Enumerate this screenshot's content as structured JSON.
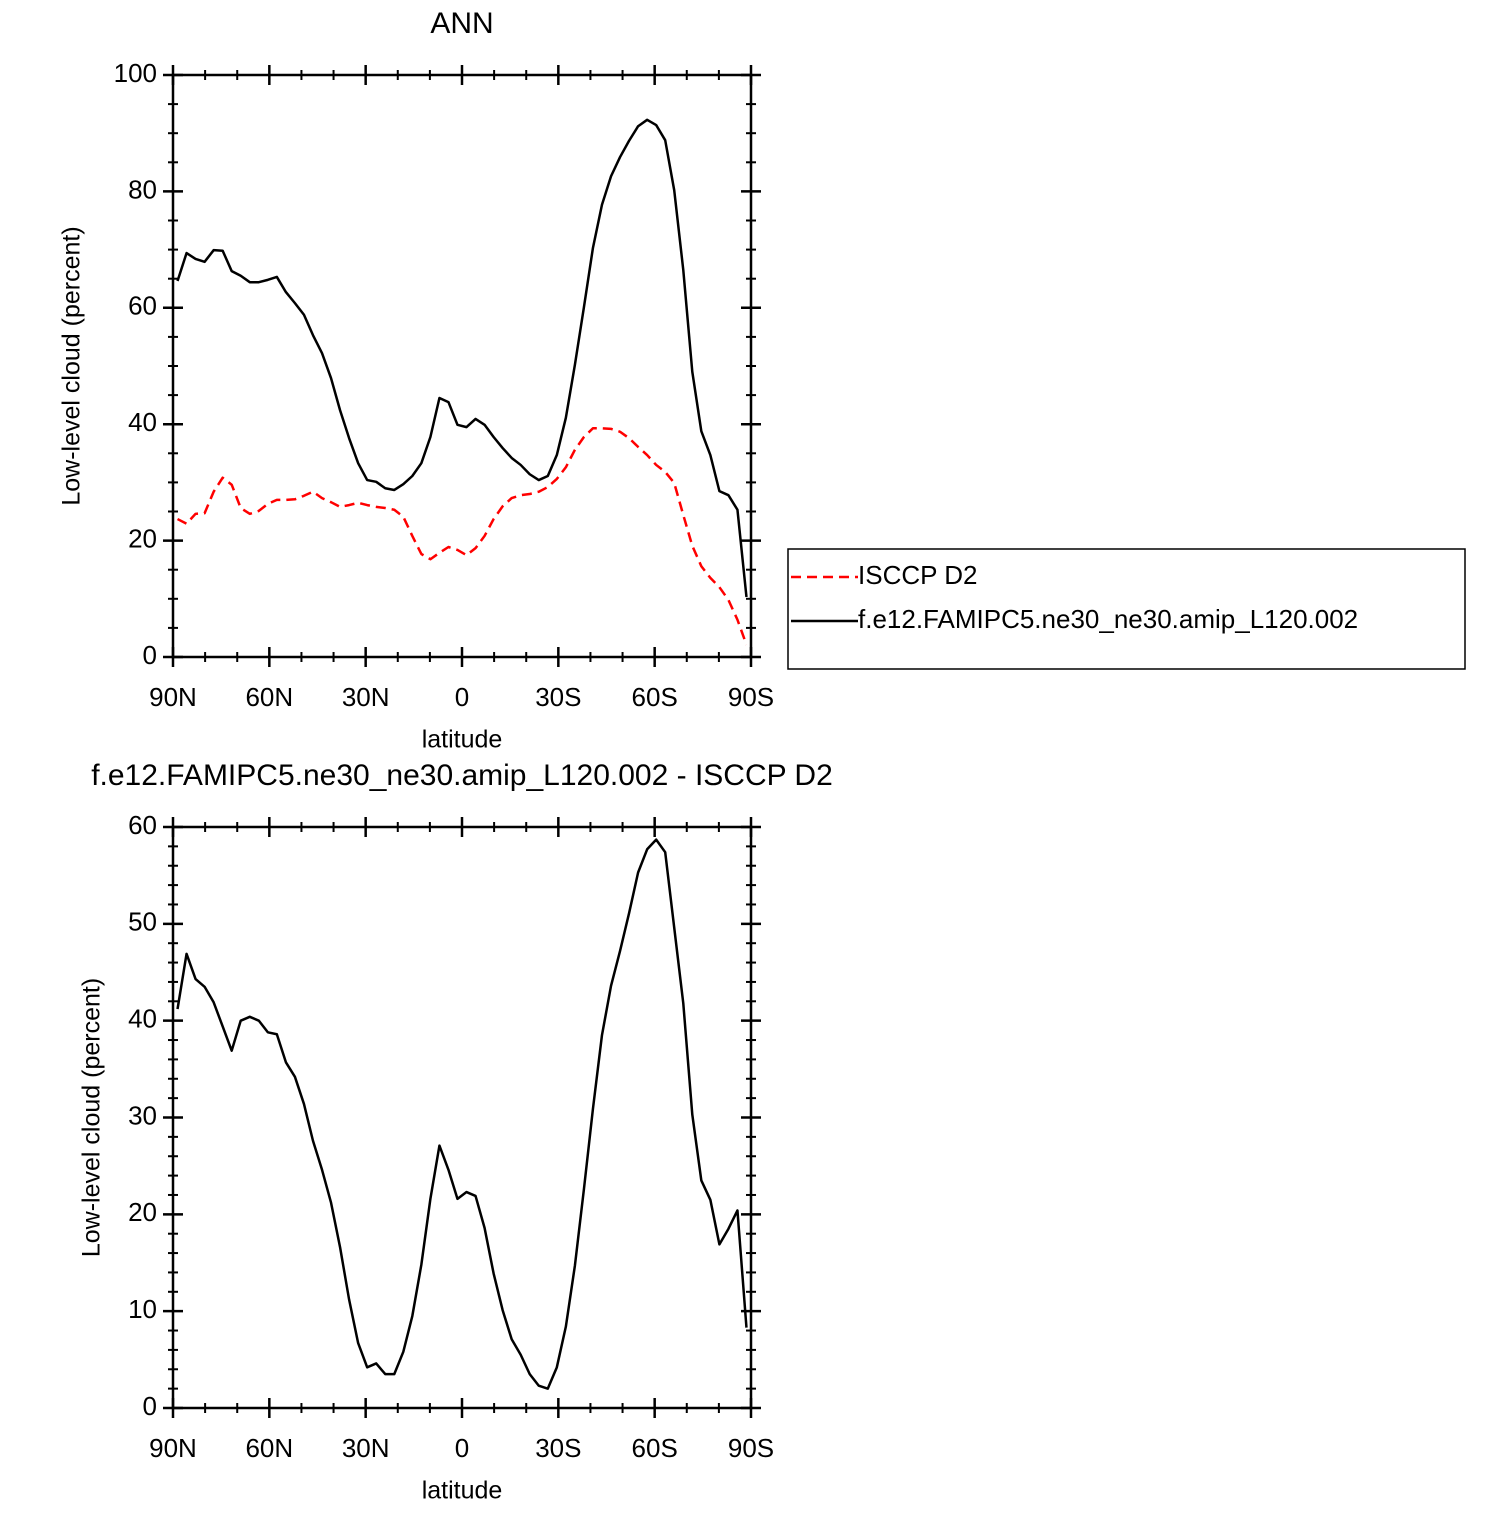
{
  "chart_data": [
    {
      "type": "line",
      "title": "ANN",
      "xlabel": "latitude",
      "ylabel": "Low-level cloud (percent)",
      "x": [
        88.59,
        85.78,
        82.97,
        80.16,
        77.34,
        74.53,
        71.72,
        68.91,
        66.09,
        63.28,
        60.47,
        57.66,
        54.84,
        52.03,
        49.22,
        46.41,
        43.59,
        40.78,
        37.97,
        35.16,
        32.34,
        29.53,
        26.72,
        23.91,
        21.09,
        18.28,
        15.47,
        12.66,
        9.84,
        7.03,
        4.22,
        1.41,
        -1.41,
        -4.22,
        -7.03,
        -9.84,
        -12.66,
        -15.47,
        -18.28,
        -21.09,
        -23.91,
        -26.72,
        -29.53,
        -32.34,
        -35.16,
        -37.97,
        -40.78,
        -43.59,
        -46.41,
        -49.22,
        -52.03,
        -54.84,
        -57.66,
        -60.47,
        -63.28,
        -66.09,
        -68.91,
        -71.72,
        -74.53,
        -77.34,
        -80.16,
        -82.97,
        -85.78,
        -88.59
      ],
      "series": [
        {
          "name": "ISCCP D2",
          "color": "#ff0000",
          "line_style": "dashed",
          "values": [
            23.7,
            22.9,
            24.6,
            24.7,
            28.4,
            30.8,
            29.6,
            25.6,
            24.6,
            25.1,
            26.3,
            27.0,
            27.0,
            27.1,
            27.7,
            28.4,
            27.3,
            26.6,
            25.8,
            26.1,
            26.5,
            26.1,
            25.8,
            25.6,
            25.3,
            24.1,
            20.8,
            17.7,
            16.8,
            17.9,
            18.9,
            18.4,
            17.5,
            18.7,
            20.8,
            23.7,
            25.9,
            27.3,
            27.8,
            28.0,
            28.4,
            29.2,
            30.6,
            32.6,
            35.6,
            37.8,
            39.3,
            39.3,
            39.2,
            38.7,
            37.6,
            36.1,
            34.7,
            33.0,
            31.8,
            29.9,
            24.4,
            19.1,
            15.6,
            13.6,
            12.0,
            9.8,
            6.4,
            2.1
          ]
        },
        {
          "name": "f.e12.FAMIPC5.ne30_ne30.amip_L120.002",
          "color": "#000000",
          "line_style": "solid",
          "values": [
            64.6,
            69.4,
            68.4,
            67.9,
            69.9,
            69.8,
            66.3,
            65.5,
            64.4,
            64.4,
            64.8,
            65.3,
            62.7,
            60.8,
            58.8,
            55.3,
            52.2,
            47.9,
            42.4,
            37.6,
            33.3,
            30.4,
            30.1,
            29.0,
            28.7,
            29.7,
            31.1,
            33.3,
            37.8,
            44.5,
            43.8,
            39.9,
            39.5,
            40.9,
            39.9,
            37.8,
            35.9,
            34.2,
            33.0,
            31.4,
            30.4,
            31.1,
            34.7,
            41.1,
            50.2,
            60.1,
            70.3,
            77.7,
            82.6,
            85.9,
            88.7,
            91.2,
            92.3,
            91.4,
            88.8,
            80.2,
            66.5,
            49.0,
            38.8,
            34.7,
            28.5,
            27.8,
            25.3,
            10.3
          ]
        }
      ],
      "xlim": [
        90,
        -90
      ],
      "xticks": [
        {
          "value": 90,
          "label": "90N"
        },
        {
          "value": 60,
          "label": "60N"
        },
        {
          "value": 30,
          "label": "30N"
        },
        0,
        {
          "value": -30,
          "label": "30S"
        },
        {
          "value": -60,
          "label": "60S"
        },
        {
          "value": -90,
          "label": "90S"
        }
      ],
      "xminorticks": [
        80,
        70,
        50,
        40,
        20,
        10,
        -10,
        -20,
        -40,
        -50,
        -70,
        -80
      ],
      "ylim": [
        0,
        100
      ],
      "yticks": [
        0,
        20,
        40,
        60,
        80,
        100
      ],
      "yminorticks": [
        5,
        10,
        15,
        25,
        30,
        35,
        45,
        50,
        55,
        65,
        70,
        75,
        85,
        90,
        95
      ],
      "legend": "outside-right"
    },
    {
      "type": "line",
      "title": "f.e12.FAMIPC5.ne30_ne30.amip_L120.002 - ISCCP D2",
      "xlabel": "latitude",
      "ylabel": "Low-level cloud (percent)",
      "x": [
        88.59,
        85.78,
        82.97,
        80.16,
        77.34,
        74.53,
        71.72,
        68.91,
        66.09,
        63.28,
        60.47,
        57.66,
        54.84,
        52.03,
        49.22,
        46.41,
        43.59,
        40.78,
        37.97,
        35.16,
        32.34,
        29.53,
        26.72,
        23.91,
        21.09,
        18.28,
        15.47,
        12.66,
        9.84,
        7.03,
        4.22,
        1.41,
        -1.41,
        -4.22,
        -7.03,
        -9.84,
        -12.66,
        -15.47,
        -18.28,
        -21.09,
        -23.91,
        -26.72,
        -29.53,
        -32.34,
        -35.16,
        -37.97,
        -40.78,
        -43.59,
        -46.41,
        -49.22,
        -52.03,
        -54.84,
        -57.66,
        -60.47,
        -63.28,
        -66.09,
        -68.91,
        -71.72,
        -74.53,
        -77.34,
        -80.16,
        -82.97,
        -85.78,
        -88.59
      ],
      "series": [
        {
          "color": "#000000",
          "line_style": "solid",
          "values": [
            41.2,
            46.9,
            44.3,
            43.5,
            41.9,
            39.4,
            36.9,
            40.0,
            40.4,
            40.0,
            38.8,
            38.6,
            35.7,
            34.2,
            31.4,
            27.6,
            24.6,
            21.2,
            16.6,
            11.2,
            6.7,
            4.2,
            4.6,
            3.5,
            3.5,
            5.8,
            9.5,
            14.8,
            21.6,
            27.1,
            24.6,
            21.6,
            22.3,
            21.9,
            18.6,
            13.9,
            10.1,
            7.1,
            5.5,
            3.5,
            2.3,
            2.0,
            4.2,
            8.4,
            14.7,
            22.6,
            30.9,
            38.5,
            43.6,
            47.2,
            51.1,
            55.3,
            57.7,
            58.7,
            57.4,
            49.6,
            41.8,
            30.3,
            23.5,
            21.5,
            16.9,
            18.5,
            20.4,
            8.3
          ]
        }
      ],
      "xlim": [
        90,
        -90
      ],
      "xticks": [
        {
          "value": 90,
          "label": "90N"
        },
        {
          "value": 60,
          "label": "60N"
        },
        {
          "value": 30,
          "label": "30N"
        },
        0,
        {
          "value": -30,
          "label": "30S"
        },
        {
          "value": -60,
          "label": "60S"
        },
        {
          "value": -90,
          "label": "90S"
        }
      ],
      "xminorticks": [
        80,
        70,
        50,
        40,
        20,
        10,
        -10,
        -20,
        -40,
        -50,
        -70,
        -80
      ],
      "ylim": [
        0,
        60
      ],
      "yticks": [
        0,
        10,
        20,
        30,
        40,
        50,
        60
      ],
      "yminorticks": [
        2,
        4,
        6,
        8,
        12,
        14,
        16,
        18,
        22,
        24,
        26,
        28,
        32,
        34,
        36,
        38,
        42,
        44,
        46,
        48,
        52,
        54,
        56,
        58
      ]
    }
  ]
}
